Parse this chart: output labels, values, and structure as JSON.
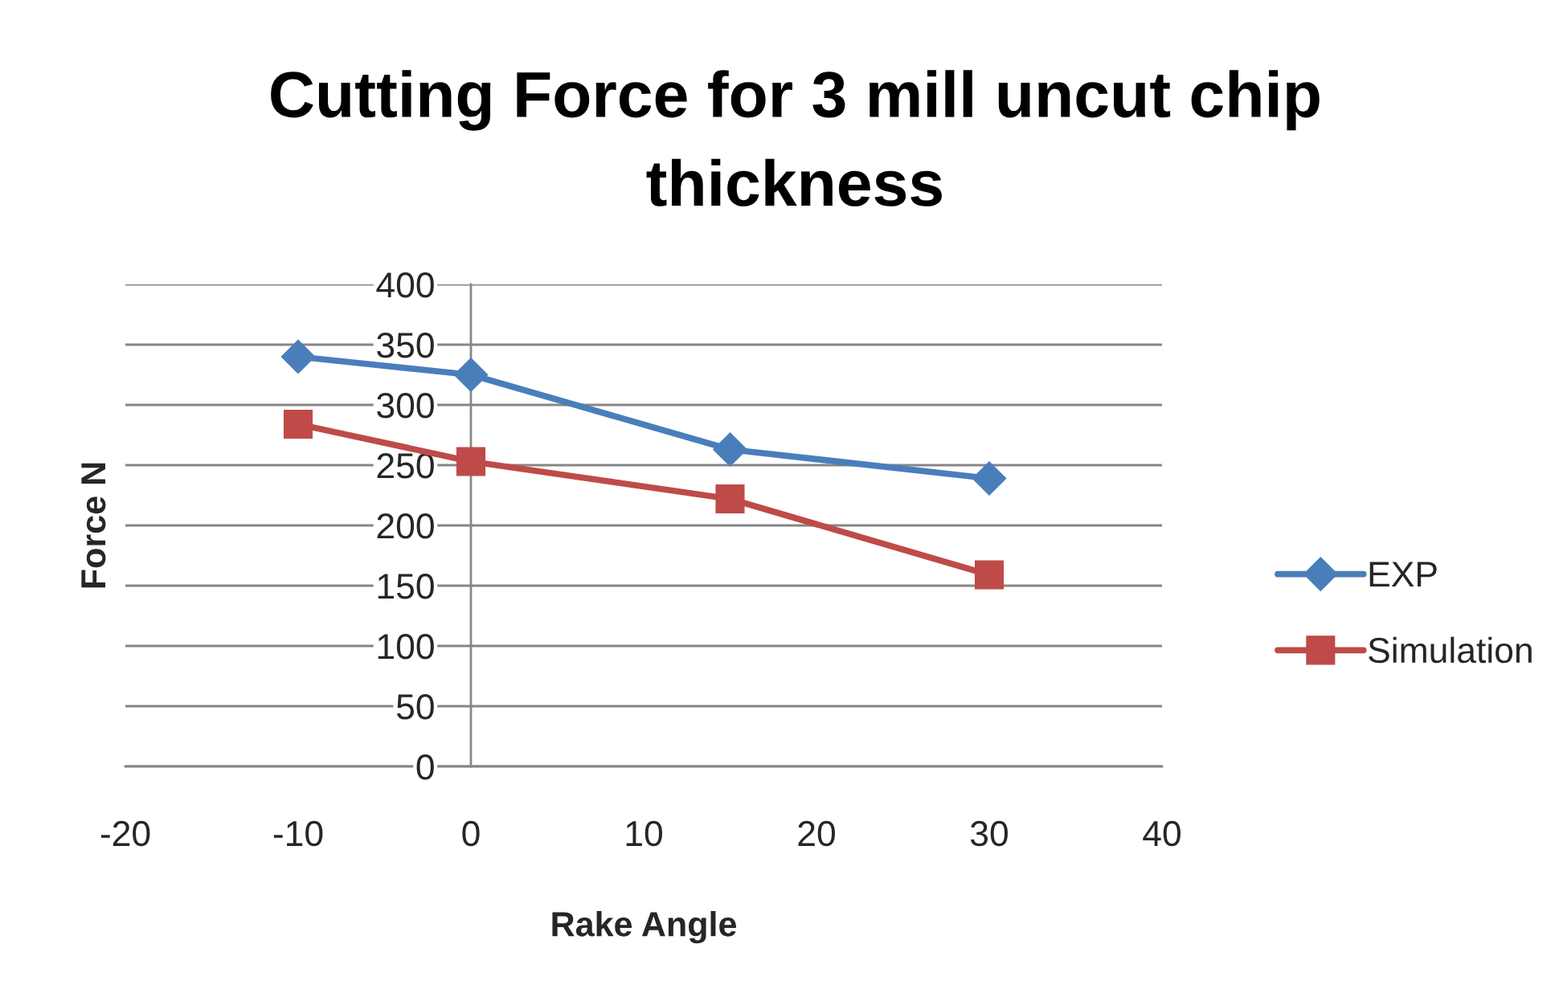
{
  "chart_data": {
    "type": "line",
    "title": "Cutting Force for 3 mill uncut chip thickness",
    "xlabel": "Rake Angle",
    "ylabel": "Force N",
    "x": [
      -10,
      0,
      15,
      30
    ],
    "series": [
      {
        "name": "EXP",
        "color": "#4a7ebb",
        "marker": "diamond",
        "values": [
          340,
          325,
          263,
          239
        ]
      },
      {
        "name": "Simulation",
        "color": "#be4b48",
        "marker": "square",
        "values": [
          284,
          253,
          222,
          159
        ]
      }
    ],
    "xlim": [
      -20,
      40
    ],
    "xticks": [
      -20,
      -10,
      0,
      10,
      20,
      30,
      40
    ],
    "ylim": [
      0,
      400
    ],
    "yticks": [
      0,
      50,
      100,
      150,
      200,
      250,
      300,
      350,
      400
    ],
    "grid": "y",
    "legend": "right",
    "line_style": "solid"
  }
}
